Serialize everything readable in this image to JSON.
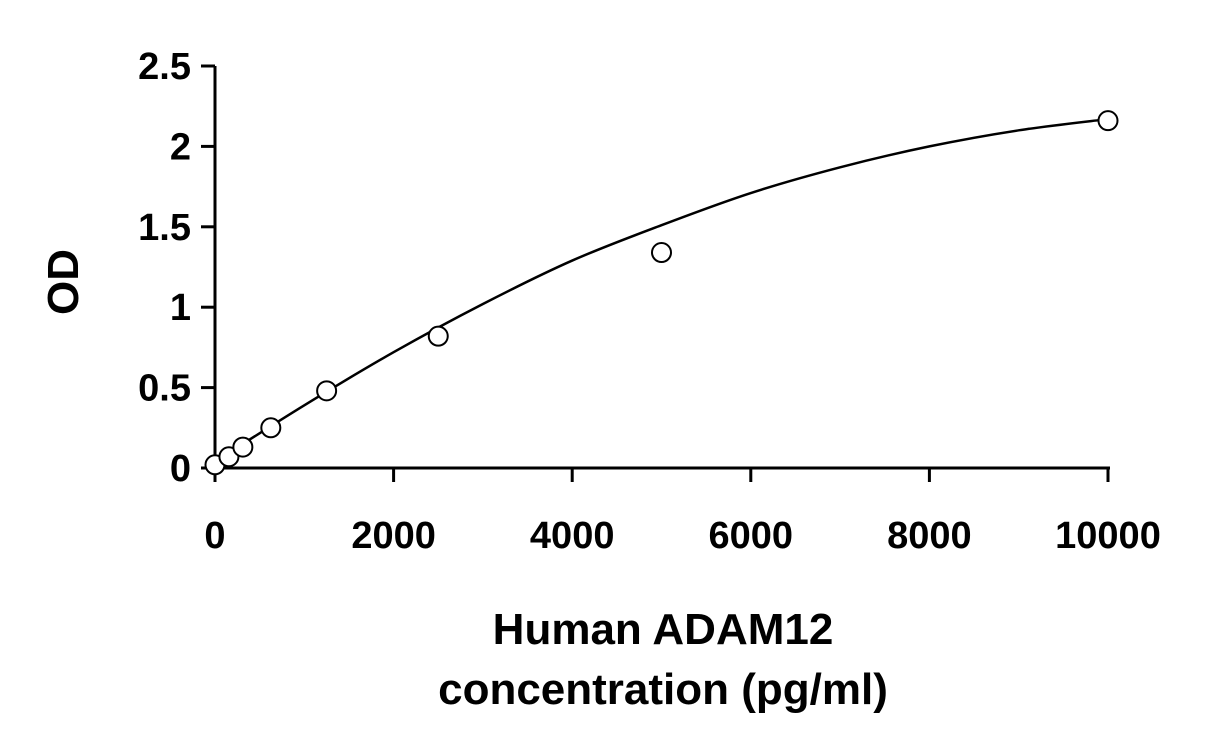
{
  "chart_data": {
    "type": "scatter",
    "title": "",
    "xlabel_lines": [
      "Human ADAM12",
      "concentration (pg/ml)"
    ],
    "ylabel": "OD",
    "xlim": [
      0,
      10000
    ],
    "ylim": [
      0,
      2.5
    ],
    "xticks": [
      0,
      2000,
      4000,
      6000,
      8000,
      10000
    ],
    "yticks": [
      0,
      0.5,
      1,
      1.5,
      2,
      2.5
    ],
    "xtick_labels": [
      "0",
      "2000",
      "4000",
      "6000",
      "8000",
      "10000"
    ],
    "ytick_labels": [
      "0",
      "0.5",
      "1",
      "1.5",
      "2",
      "2.5"
    ],
    "grid": false,
    "legend": "none",
    "series": [
      {
        "marker": "open-circle",
        "x": [
          0,
          156,
          312,
          625,
          1250,
          2500,
          5000,
          10000
        ],
        "y": [
          0.02,
          0.07,
          0.13,
          0.25,
          0.48,
          0.82,
          1.34,
          2.16
        ]
      }
    ],
    "fit_curve": {
      "type": "smooth",
      "x": [
        0,
        1000,
        2000,
        3000,
        4000,
        5000,
        6000,
        7000,
        8000,
        9000,
        10000
      ],
      "y": [
        0.04,
        0.39,
        0.72,
        1.02,
        1.29,
        1.51,
        1.71,
        1.87,
        2.0,
        2.1,
        2.17
      ]
    }
  }
}
